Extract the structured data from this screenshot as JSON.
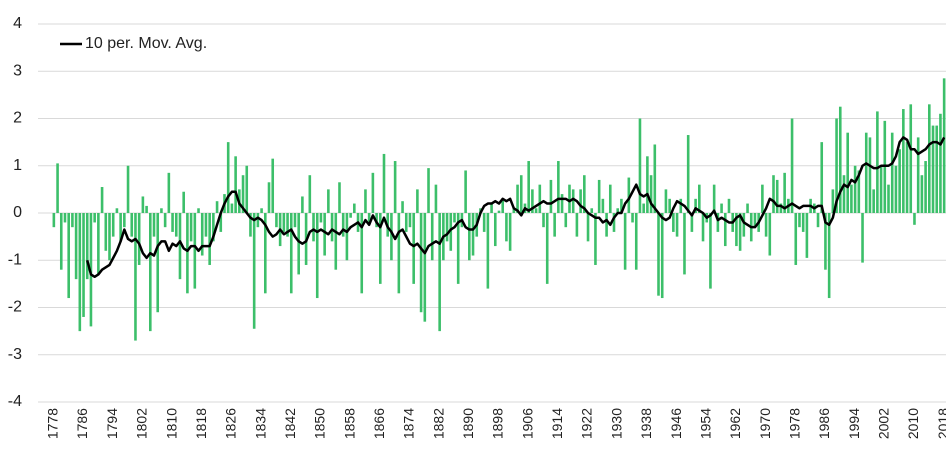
{
  "chart_data": {
    "type": "bar",
    "categories": [
      "1778",
      null,
      null,
      null,
      null,
      null,
      null,
      null,
      "1786",
      null,
      null,
      null,
      null,
      null,
      null,
      null,
      "1794",
      null,
      null,
      null,
      null,
      null,
      null,
      null,
      "1802",
      null,
      null,
      null,
      null,
      null,
      null,
      null,
      "1810",
      null,
      null,
      null,
      null,
      null,
      null,
      null,
      "1818",
      null,
      null,
      null,
      null,
      null,
      null,
      null,
      "1826",
      null,
      null,
      null,
      null,
      null,
      null,
      null,
      "1834",
      null,
      null,
      null,
      null,
      null,
      null,
      null,
      "1842",
      null,
      null,
      null,
      null,
      null,
      null,
      null,
      "1850",
      null,
      null,
      null,
      null,
      null,
      null,
      null,
      "1858",
      null,
      null,
      null,
      null,
      null,
      null,
      null,
      "1866",
      null,
      null,
      null,
      null,
      null,
      null,
      null,
      "1874",
      null,
      null,
      null,
      null,
      null,
      null,
      null,
      "1882",
      null,
      null,
      null,
      null,
      null,
      null,
      null,
      "1890",
      null,
      null,
      null,
      null,
      null,
      null,
      null,
      "1898",
      null,
      null,
      null,
      null,
      null,
      null,
      null,
      "1906",
      null,
      null,
      null,
      null,
      null,
      null,
      null,
      "1914",
      null,
      null,
      null,
      null,
      null,
      null,
      null,
      "1922",
      null,
      null,
      null,
      null,
      null,
      null,
      null,
      "1930",
      null,
      null,
      null,
      null,
      null,
      null,
      null,
      "1938",
      null,
      null,
      null,
      null,
      null,
      null,
      null,
      "1946",
      null,
      null,
      null,
      null,
      null,
      null,
      null,
      "1954",
      null,
      null,
      null,
      null,
      null,
      null,
      null,
      "1962",
      null,
      null,
      null,
      null,
      null,
      null,
      null,
      "1970",
      null,
      null,
      null,
      null,
      null,
      null,
      null,
      "1978",
      null,
      null,
      null,
      null,
      null,
      null,
      null,
      "1986",
      null,
      null,
      null,
      null,
      null,
      null,
      null,
      "1994",
      null,
      null,
      null,
      null,
      null,
      null,
      null,
      "2002",
      null,
      null,
      null,
      null,
      null,
      null,
      null,
      "2010",
      null,
      null,
      null,
      null,
      null,
      null,
      null,
      "2018"
    ],
    "values": [
      -0.3,
      1.05,
      -1.2,
      -0.2,
      -1.8,
      -0.3,
      -1.4,
      -2.5,
      -2.2,
      -1.4,
      -2.4,
      -0.2,
      -1.3,
      0.55,
      -0.8,
      -1.0,
      -0.5,
      0.1,
      -0.6,
      -0.3,
      1.0,
      -0.5,
      -2.7,
      -1.1,
      0.35,
      0.15,
      -2.5,
      -0.5,
      -2.1,
      0.1,
      -0.3,
      0.85,
      -0.4,
      -0.5,
      -1.4,
      0.45,
      -1.7,
      -0.6,
      -1.6,
      0.1,
      -0.9,
      -0.5,
      -1.1,
      -0.6,
      0.25,
      -0.4,
      0.4,
      1.5,
      0.2,
      1.2,
      0.5,
      0.8,
      1.0,
      -0.5,
      -2.45,
      -0.3,
      0.1,
      -1.7,
      0.65,
      1.15,
      -0.3,
      -0.7,
      -0.4,
      -0.5,
      -1.7,
      -0.3,
      -1.3,
      0.35,
      -1.1,
      0.8,
      -0.6,
      -1.8,
      -0.2,
      -0.9,
      0.5,
      -0.6,
      -1.2,
      0.65,
      -0.5,
      -1.0,
      -0.1,
      0.2,
      -0.4,
      -1.7,
      0.5,
      -0.2,
      0.85,
      -0.3,
      -1.5,
      1.25,
      -0.5,
      -1.0,
      1.1,
      -1.7,
      0.25,
      -0.4,
      -0.3,
      -1.5,
      0.5,
      -2.1,
      -2.3,
      0.95,
      -1.0,
      0.6,
      -2.5,
      -1.0,
      -0.6,
      -0.8,
      -0.2,
      -1.5,
      -0.3,
      0.9,
      -1.0,
      -0.9,
      -0.5,
      0.1,
      -0.4,
      -1.6,
      0.2,
      -0.7,
      0.05,
      0.3,
      -0.6,
      -0.8,
      0.1,
      0.6,
      0.8,
      0.2,
      1.1,
      0.5,
      0.1,
      0.6,
      -0.3,
      -1.5,
      0.7,
      -0.5,
      1.1,
      0.4,
      -0.3,
      0.6,
      0.5,
      -0.5,
      0.5,
      0.8,
      -0.6,
      0.1,
      -1.1,
      0.7,
      0.3,
      -0.5,
      0.6,
      -0.4,
      0.1,
      0.3,
      -1.2,
      0.75,
      -0.2,
      -1.2,
      2.0,
      0.2,
      1.2,
      0.8,
      1.45,
      -1.75,
      -1.8,
      0.5,
      0.3,
      -0.4,
      -0.5,
      0.3,
      -1.3,
      1.65,
      -0.4,
      0.3,
      0.6,
      -0.6,
      -0.2,
      -1.6,
      0.6,
      -0.4,
      0.2,
      -0.7,
      0.3,
      -0.4,
      -0.7,
      -0.8,
      -0.5,
      0.2,
      -0.6,
      -0.3,
      -0.4,
      0.6,
      -0.5,
      -0.9,
      0.8,
      0.7,
      0.2,
      0.85,
      0.3,
      2.0,
      -1.1,
      -0.3,
      -0.4,
      -0.95,
      0.3,
      0.2,
      -0.3,
      1.5,
      -1.2,
      -1.8,
      0.5,
      2.0,
      2.25,
      0.8,
      1.7,
      0.6,
      1.0,
      0.9,
      -1.05,
      1.7,
      1.6,
      0.5,
      2.15,
      1.0,
      1.95,
      0.6,
      1.7,
      1.0,
      1.35,
      2.2,
      1.5,
      2.3,
      -0.25,
      1.6,
      0.8,
      1.1,
      2.3,
      1.85,
      1.85,
      2.1,
      2.85
    ],
    "color": "#3cbf6a",
    "lines": [
      {
        "name": "10 per. Mov. Avg.",
        "color": "#000000",
        "values": [
          null,
          null,
          null,
          null,
          null,
          null,
          null,
          null,
          null,
          -1.0,
          -1.3,
          -1.35,
          -1.3,
          -1.2,
          -1.15,
          -1.1,
          -0.95,
          -0.8,
          -0.6,
          -0.35,
          -0.55,
          -0.6,
          -0.55,
          -0.65,
          -0.85,
          -0.95,
          -0.85,
          -0.9,
          -0.7,
          -0.6,
          -0.6,
          -0.8,
          -0.65,
          -0.7,
          -0.6,
          -0.75,
          -0.8,
          -0.7,
          -0.7,
          -0.8,
          -0.7,
          -0.7,
          -0.7,
          -0.5,
          -0.25,
          0.0,
          0.2,
          0.35,
          0.45,
          0.45,
          0.2,
          0.1,
          0.0,
          -0.1,
          -0.15,
          -0.1,
          -0.15,
          -0.25,
          -0.4,
          -0.5,
          -0.45,
          -0.35,
          -0.45,
          -0.4,
          -0.35,
          -0.5,
          -0.6,
          -0.65,
          -0.6,
          -0.4,
          -0.35,
          -0.4,
          -0.35,
          -0.4,
          -0.45,
          -0.35,
          -0.4,
          -0.45,
          -0.35,
          -0.4,
          -0.3,
          -0.25,
          -0.2,
          -0.3,
          -0.15,
          -0.25,
          -0.05,
          -0.2,
          -0.3,
          -0.1,
          -0.3,
          -0.4,
          -0.55,
          -0.4,
          -0.35,
          -0.5,
          -0.65,
          -0.7,
          -0.65,
          -0.75,
          -0.85,
          -0.7,
          -0.65,
          -0.6,
          -0.65,
          -0.5,
          -0.45,
          -0.35,
          -0.3,
          -0.2,
          -0.15,
          -0.3,
          -0.35,
          -0.35,
          -0.25,
          0.0,
          0.15,
          0.2,
          0.2,
          0.25,
          0.2,
          0.3,
          0.25,
          0.3,
          0.1,
          0.05,
          -0.05,
          0.1,
          0.05,
          0.1,
          0.15,
          0.2,
          0.25,
          0.2,
          0.2,
          0.25,
          0.3,
          0.3,
          0.3,
          0.25,
          0.3,
          0.25,
          0.15,
          0.1,
          0.0,
          -0.05,
          -0.1,
          -0.1,
          -0.2,
          -0.15,
          -0.25,
          -0.1,
          0.0,
          0.0,
          0.2,
          0.3,
          0.45,
          0.6,
          0.4,
          0.35,
          0.4,
          0.2,
          0.1,
          0.0,
          -0.1,
          -0.15,
          -0.1,
          0.1,
          0.25,
          0.2,
          0.15,
          0.05,
          -0.05,
          0.1,
          0.05,
          0.0,
          -0.1,
          -0.05,
          0.05,
          -0.15,
          -0.1,
          -0.15,
          -0.2,
          -0.2,
          -0.1,
          -0.05,
          -0.2,
          -0.25,
          -0.3,
          -0.3,
          -0.2,
          -0.05,
          0.1,
          0.3,
          0.25,
          0.15,
          0.15,
          0.1,
          0.15,
          0.2,
          0.15,
          0.1,
          0.15,
          0.15,
          0.15,
          0.1,
          0.15,
          0.15,
          -0.2,
          -0.25,
          -0.1,
          0.25,
          0.45,
          0.6,
          0.55,
          0.7,
          0.65,
          0.8,
          1.0,
          1.05,
          1.0,
          0.95,
          0.95,
          1.0,
          1.0,
          1.0,
          1.05,
          1.2,
          1.5,
          1.6,
          1.55,
          1.35,
          1.35,
          1.25,
          1.3,
          1.35,
          1.45,
          1.5,
          1.5,
          1.45,
          1.6
        ]
      }
    ],
    "ylim": [
      -4,
      4
    ],
    "yticks": [
      -4,
      -3,
      -2,
      -1,
      0,
      1,
      2,
      3,
      4
    ],
    "grid": true,
    "legend": "top-left"
  }
}
